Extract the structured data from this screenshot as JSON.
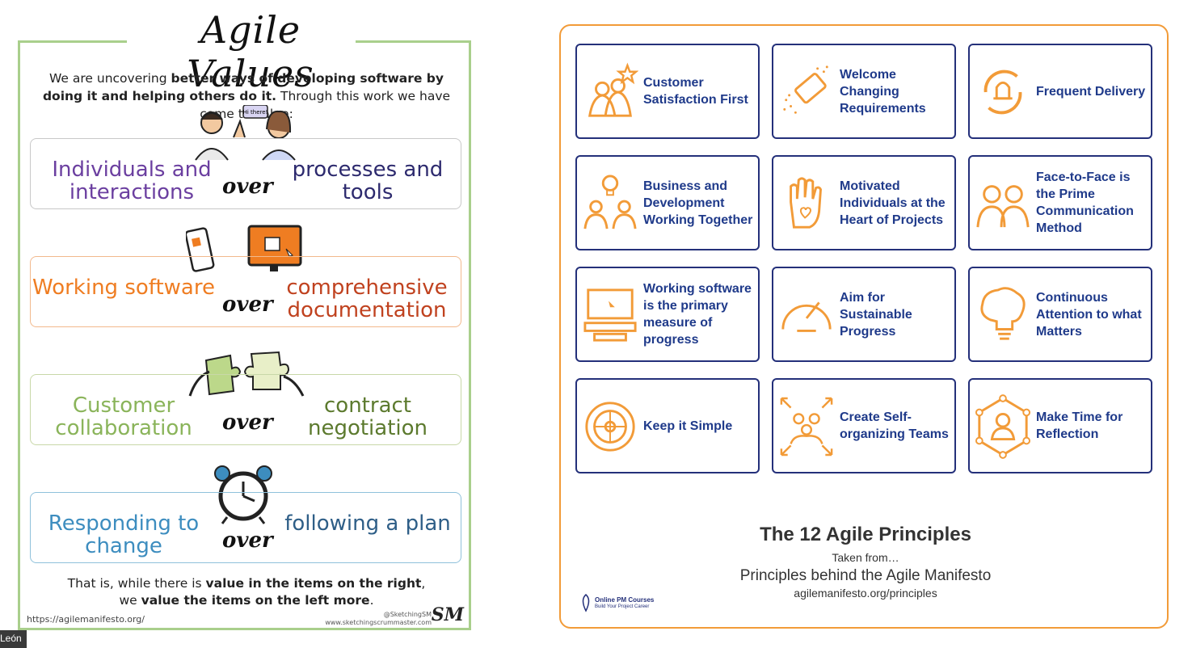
{
  "left_poster": {
    "title": "Agile Values",
    "intro": {
      "part1": "We are uncovering ",
      "bold1": "better ways of developing software by doing it and helping others do it.",
      "part2": " Through this work we have come to value:"
    },
    "speech_bubble": "Hi there!",
    "over_word": "over",
    "values": [
      {
        "left": "Individuals and interactions",
        "right": "processes and tools"
      },
      {
        "left": "Working software",
        "right": "comprehensive documentation"
      },
      {
        "left": "Customer collaboration",
        "right": "contract negotiation"
      },
      {
        "left": "Responding to change",
        "right": "following a plan"
      }
    ],
    "conclusion": {
      "part1": "That is, while there is ",
      "bold1": "value in the items on the right",
      "part2": ",",
      "part3": "we ",
      "bold2": "value the items on the left more",
      "part4": "."
    },
    "footer_url": "https://agilemanifesto.org/",
    "credit_handle": "@SketchingSM",
    "credit_site": "www.sketchingscrummaster.com",
    "logo_text": "SM",
    "colors": {
      "border": "#a9cf8c",
      "individuals": "#6b3fa0",
      "processes": "#2d2a6e",
      "working": "#ef7d22",
      "documentation": "#c0421f",
      "collaboration": "#8ab45a",
      "negotiation": "#5c7a2e",
      "responding": "#3d8dbf",
      "plan": "#2e5e87"
    }
  },
  "name_tag": "León",
  "right_poster": {
    "principles": [
      {
        "label": "Customer Satisfaction First",
        "icon": "people-star-icon"
      },
      {
        "label": "Welcome Changing Requirements",
        "icon": "eraser-icon"
      },
      {
        "label": "Frequent Delivery",
        "icon": "bell-cycle-icon"
      },
      {
        "label": "Business and Development Working Together",
        "icon": "lightbulb-people-icon"
      },
      {
        "label": "Motivated Individuals at the Heart of Projects",
        "icon": "hand-heart-icon"
      },
      {
        "label": "Face-to-Face is the Prime Communication Method",
        "icon": "two-people-icon"
      },
      {
        "label": "Working software is the primary measure of progress",
        "icon": "computer-icon"
      },
      {
        "label": "Aim for Sustainable Progress",
        "icon": "speedometer-icon"
      },
      {
        "label": "Continuous Attention to what Matters",
        "icon": "brain-bulb-icon"
      },
      {
        "label": "Keep it Simple",
        "icon": "wheel-icon"
      },
      {
        "label": "Create Self-organizing Teams",
        "icon": "team-arrows-icon"
      },
      {
        "label": "Make Time for Reflection",
        "icon": "person-hexagon-icon"
      }
    ],
    "title": "The 12 Agile Principles",
    "subtitle": "Taken from…",
    "source": "Principles behind the Agile Manifesto",
    "source_url": "agilemanifesto.org/principles",
    "logo_name": "Online PM Courses",
    "logo_tagline": "Build Your Project Career",
    "colors": {
      "border": "#f29b38",
      "box": "#24307a",
      "label": "#1f3a8a",
      "icon": "#f29b38"
    }
  }
}
